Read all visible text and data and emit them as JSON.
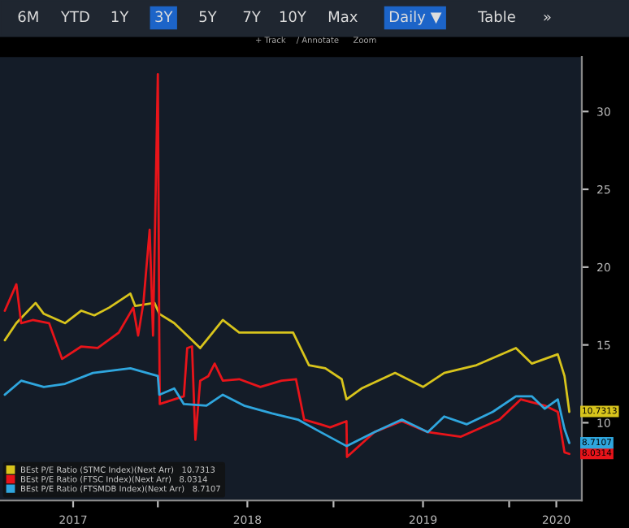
{
  "chart_data": {
    "type": "line",
    "legend": "bottom left",
    "xlim": [
      "2017-02-07",
      "2020-05-31"
    ],
    "ylim": [
      5,
      33.5
    ],
    "yticks": [
      10,
      15,
      20,
      25,
      30
    ],
    "xticks": [
      {
        "value": "2017-07-09",
        "label": "2017"
      },
      {
        "value": "2018-01-01",
        "label": null
      },
      {
        "value": "2018-07-06",
        "label": "2018"
      },
      {
        "value": "2019-01-01",
        "label": null
      },
      {
        "value": "2019-07-06",
        "label": "2019"
      },
      {
        "value": "2020-01-01",
        "label": null
      },
      {
        "value": "2020-04-08",
        "label": "2020"
      }
    ],
    "annotations": [
      "6M",
      "YTD",
      "1Y",
      "3Y",
      "5Y",
      "7Y",
      "10Y",
      "Max",
      "Daily ▼",
      "Table",
      "»",
      "+ Track",
      "/ Annotate",
      "Zoom",
      {
        "text": "10.7313",
        "x": "2020-05-05",
        "y": 10.7313
      },
      {
        "text": "8.0314",
        "x": "2020-05-05",
        "y": 8.0314
      },
      {
        "text": "8.7107",
        "x": "2020-05-05",
        "y": 8.7107
      }
    ],
    "series": [
      {
        "name": "BEst P/E Ratio (STMC Index)(Next Arr)   10.7313",
        "color": "#d8c41c",
        "x": [
          "2017-02-17",
          "2017-03-13",
          "2017-04-22",
          "2017-05-09",
          "2017-06-22",
          "2017-07-26",
          "2017-08-22",
          "2017-09-22",
          "2017-11-05",
          "2017-11-15",
          "2017-12-25",
          "2018-01-04",
          "2018-02-04",
          "2018-03-10",
          "2018-03-30",
          "2018-05-16",
          "2018-06-19",
          "2018-08-12",
          "2018-10-09",
          "2018-11-11",
          "2018-12-15",
          "2019-01-18",
          "2019-01-28",
          "2019-02-28",
          "2019-05-09",
          "2019-07-06",
          "2019-08-19",
          "2019-10-25",
          "2020-01-15",
          "2020-02-17",
          "2020-04-11",
          "2020-04-25",
          "2020-05-05"
        ],
        "values": [
          15.3,
          16.4,
          17.7,
          17.0,
          16.4,
          17.2,
          16.9,
          17.4,
          18.3,
          17.5,
          17.7,
          17.0,
          16.4,
          15.4,
          14.8,
          16.6,
          15.8,
          15.8,
          15.8,
          13.7,
          13.5,
          12.8,
          11.5,
          12.2,
          13.2,
          12.3,
          13.2,
          13.7,
          14.8,
          13.8,
          14.4,
          13.0,
          10.7
        ]
      },
      {
        "name": "BEst P/E Ratio (FTSC Index)(Next Arr)   8.0314",
        "color": "#e8141a",
        "x": [
          "2017-02-17",
          "2017-03-13",
          "2017-03-23",
          "2017-04-16",
          "2017-05-20",
          "2017-06-16",
          "2017-07-26",
          "2017-08-29",
          "2017-10-12",
          "2017-11-11",
          "2017-11-21",
          "2017-12-02",
          "2017-12-15",
          "2017-12-22",
          "2018-01-01",
          "2018-01-04",
          "2018-01-05",
          "2018-02-04",
          "2018-02-24",
          "2018-03-03",
          "2018-03-13",
          "2018-03-20",
          "2018-03-30",
          "2018-04-16",
          "2018-04-29",
          "2018-05-16",
          "2018-06-19",
          "2018-08-02",
          "2018-09-15",
          "2018-10-15",
          "2018-10-19",
          "2018-11-01",
          "2018-12-05",
          "2018-12-25",
          "2019-01-28",
          "2019-01-29",
          "2019-03-27",
          "2019-05-23",
          "2019-07-16",
          "2019-09-22",
          "2019-12-12",
          "2020-01-25",
          "2020-03-15",
          "2020-04-11",
          "2020-04-25",
          "2020-05-05"
        ],
        "values": [
          17.2,
          18.9,
          16.4,
          16.6,
          16.4,
          14.1,
          14.9,
          14.8,
          15.8,
          17.4,
          15.6,
          17.7,
          22.4,
          15.6,
          32.4,
          15.4,
          11.2,
          11.5,
          11.7,
          14.8,
          14.9,
          8.9,
          12.7,
          13.0,
          13.8,
          12.7,
          12.8,
          12.3,
          12.7,
          12.8,
          12.2,
          10.2,
          9.9,
          9.7,
          10.1,
          7.8,
          9.4,
          10.1,
          9.4,
          9.1,
          10.2,
          11.5,
          11.1,
          10.7,
          8.1,
          8.0
        ]
      },
      {
        "name": "BEst P/E Ratio (FTSMDB Index)(Next Arr)   8.7107",
        "color": "#2fa6de",
        "x": [
          "2017-02-17",
          "2017-03-23",
          "2017-05-09",
          "2017-06-22",
          "2017-08-19",
          "2017-11-05",
          "2018-01-01",
          "2018-01-04",
          "2018-02-04",
          "2018-02-24",
          "2018-04-12",
          "2018-05-16",
          "2018-06-29",
          "2018-08-26",
          "2018-10-19",
          "2018-12-05",
          "2019-01-28",
          "2019-03-27",
          "2019-05-23",
          "2019-07-16",
          "2019-08-19",
          "2019-10-05",
          "2019-11-28",
          "2020-01-15",
          "2020-02-17",
          "2020-03-15",
          "2020-04-11",
          "2020-04-25",
          "2020-05-05"
        ],
        "values": [
          11.8,
          12.7,
          12.3,
          12.5,
          13.2,
          13.5,
          13.0,
          11.8,
          12.2,
          11.2,
          11.1,
          11.8,
          11.1,
          10.6,
          10.2,
          9.4,
          8.5,
          9.4,
          10.2,
          9.4,
          10.4,
          9.9,
          10.7,
          11.7,
          11.7,
          10.9,
          11.5,
          9.6,
          8.7
        ]
      }
    ]
  }
}
